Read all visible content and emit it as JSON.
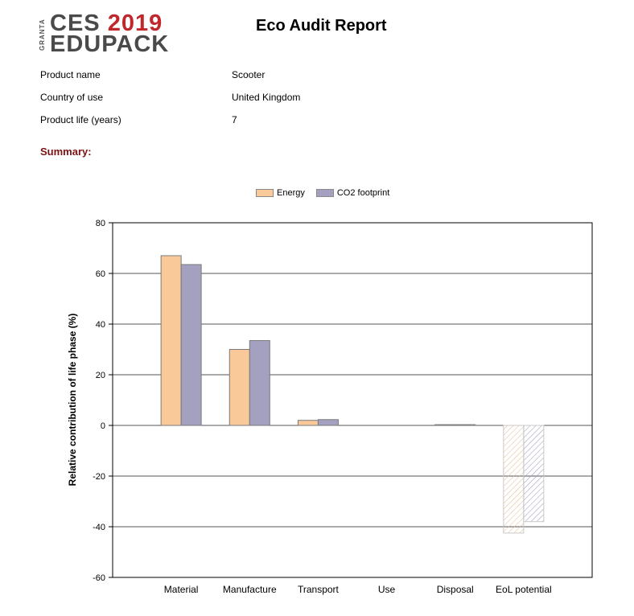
{
  "header": {
    "logo_brand": "GRANTA",
    "logo_line1_a": "CES",
    "logo_line1_b": "2019",
    "logo_line2": "EDUPACK",
    "title": "Eco Audit Report"
  },
  "product_info": [
    {
      "label": "Product name",
      "value": "Scooter"
    },
    {
      "label": "Country of use",
      "value": "United Kingdom"
    },
    {
      "label": "Product life (years)",
      "value": "7"
    }
  ],
  "summary_label": "Summary:",
  "colors": {
    "energy": "#f9c99a",
    "co2": "#a3a0c0",
    "summary": "#7b1113",
    "logo_red": "#c0272d"
  },
  "chart_data": {
    "type": "bar",
    "categories": [
      "Material",
      "Manufacture",
      "Transport",
      "Use",
      "Disposal",
      "EoL potential"
    ],
    "series": [
      {
        "name": "Energy",
        "values": [
          67,
          30,
          2,
          0,
          0.3,
          -42.5
        ]
      },
      {
        "name": "CO2 footprint",
        "values": [
          63.5,
          33.5,
          2.3,
          0,
          0.3,
          -38
        ]
      }
    ],
    "hatched_categories": [
      "EoL potential"
    ],
    "ylabel": "Relative contribution of life phase (%)",
    "ylim": [
      -60,
      80
    ],
    "yticks": [
      80,
      60,
      40,
      20,
      0,
      -20,
      -40,
      -60
    ],
    "grid": true,
    "legend_position": "top"
  }
}
